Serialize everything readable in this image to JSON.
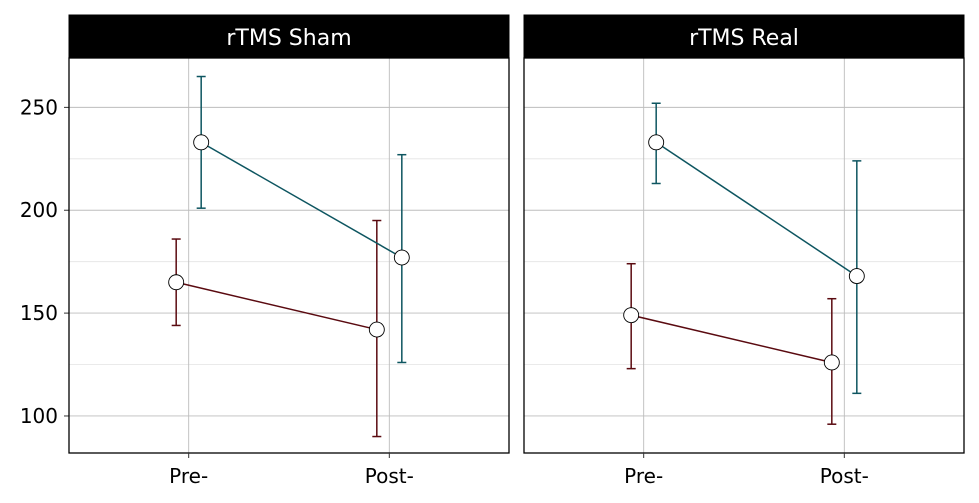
{
  "chart_data": {
    "type": "line",
    "y_axis": {
      "range": [
        82,
        274
      ],
      "ticks": [
        100,
        150,
        200,
        250
      ]
    },
    "x_axis": {
      "categories": [
        "Pre-",
        "Post-"
      ]
    },
    "grid": true,
    "legend": "none",
    "series_colors": {
      "series_a": "#5a0a10",
      "series_b": "#0d5560"
    },
    "panels": [
      {
        "title": "rTMS Sham",
        "series": [
          {
            "key": "series_a",
            "points": [
              {
                "x": "Pre-",
                "y": 165,
                "low": 144,
                "high": 186
              },
              {
                "x": "Post-",
                "y": 142,
                "low": 90,
                "high": 195
              }
            ]
          },
          {
            "key": "series_b",
            "points": [
              {
                "x": "Pre-",
                "y": 233,
                "low": 201,
                "high": 265
              },
              {
                "x": "Post-",
                "y": 177,
                "low": 126,
                "high": 227
              }
            ]
          }
        ]
      },
      {
        "title": "rTMS Real",
        "series": [
          {
            "key": "series_a",
            "points": [
              {
                "x": "Pre-",
                "y": 149,
                "low": 123,
                "high": 174
              },
              {
                "x": "Post-",
                "y": 126,
                "low": 96,
                "high": 157
              }
            ]
          },
          {
            "key": "series_b",
            "points": [
              {
                "x": "Pre-",
                "y": 233,
                "low": 213,
                "high": 252
              },
              {
                "x": "Post-",
                "y": 168,
                "low": 111,
                "high": 224
              }
            ]
          }
        ]
      }
    ]
  }
}
